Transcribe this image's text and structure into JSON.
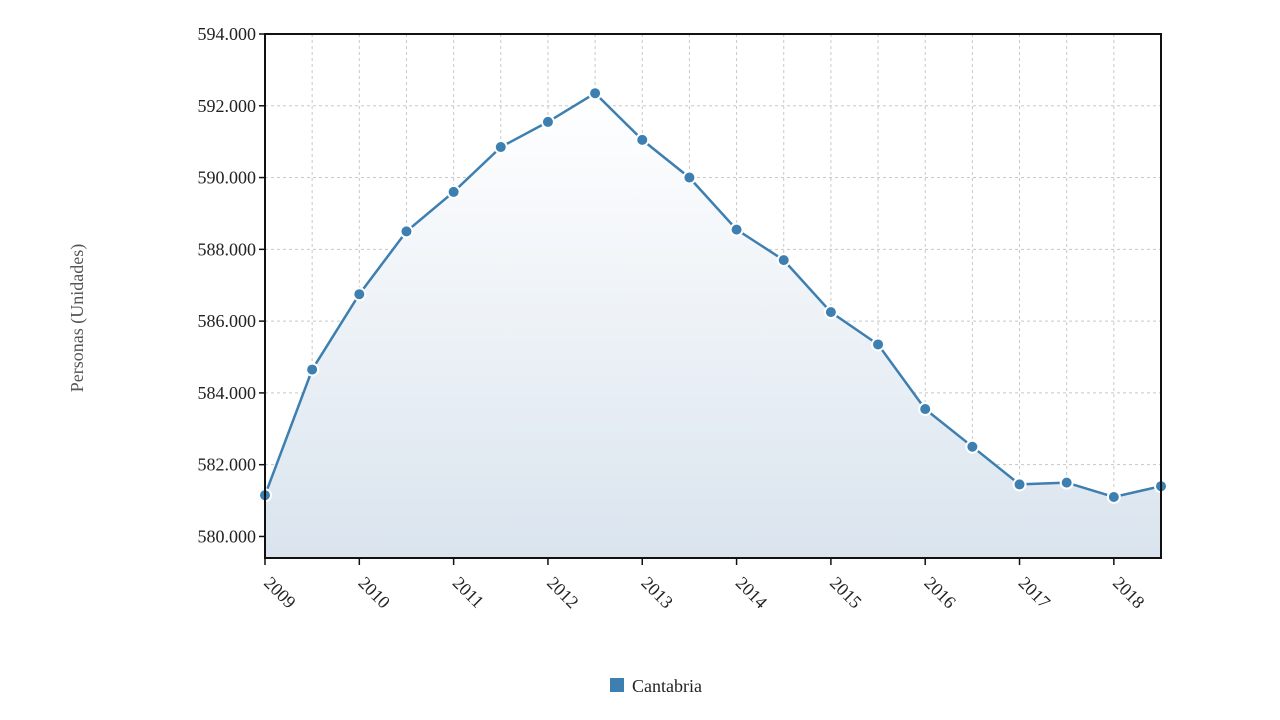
{
  "chart_data": {
    "type": "area",
    "title": "",
    "xlabel": "",
    "ylabel": "Personas (Unidades)",
    "x_tick_labels": [
      "2009",
      "2010",
      "2011",
      "2012",
      "2013",
      "2014",
      "2015",
      "2016",
      "2017",
      "2018"
    ],
    "y_tick_labels": [
      "580.000",
      "582.000",
      "584.000",
      "586.000",
      "588.000",
      "590.000",
      "592.000",
      "594.000"
    ],
    "y_ticks": [
      580000,
      582000,
      584000,
      586000,
      588000,
      590000,
      592000,
      594000
    ],
    "ylim": [
      579400,
      594000
    ],
    "xlim": [
      2009.0,
      2018.5
    ],
    "grid": true,
    "legend_position": "bottom-center",
    "series": [
      {
        "name": "Cantabria",
        "color": "#3d7fb0",
        "x": [
          2009.0,
          2009.5,
          2010.0,
          2010.5,
          2011.0,
          2011.5,
          2012.0,
          2012.5,
          2013.0,
          2013.5,
          2014.0,
          2014.5,
          2015.0,
          2015.5,
          2016.0,
          2016.5,
          2017.0,
          2017.5,
          2018.0,
          2018.5
        ],
        "values": [
          581150,
          584650,
          586750,
          588500,
          589600,
          590850,
          591550,
          592350,
          591050,
          590000,
          588550,
          587700,
          586250,
          585350,
          583550,
          582500,
          581450,
          581500,
          581100,
          581400
        ]
      }
    ]
  }
}
